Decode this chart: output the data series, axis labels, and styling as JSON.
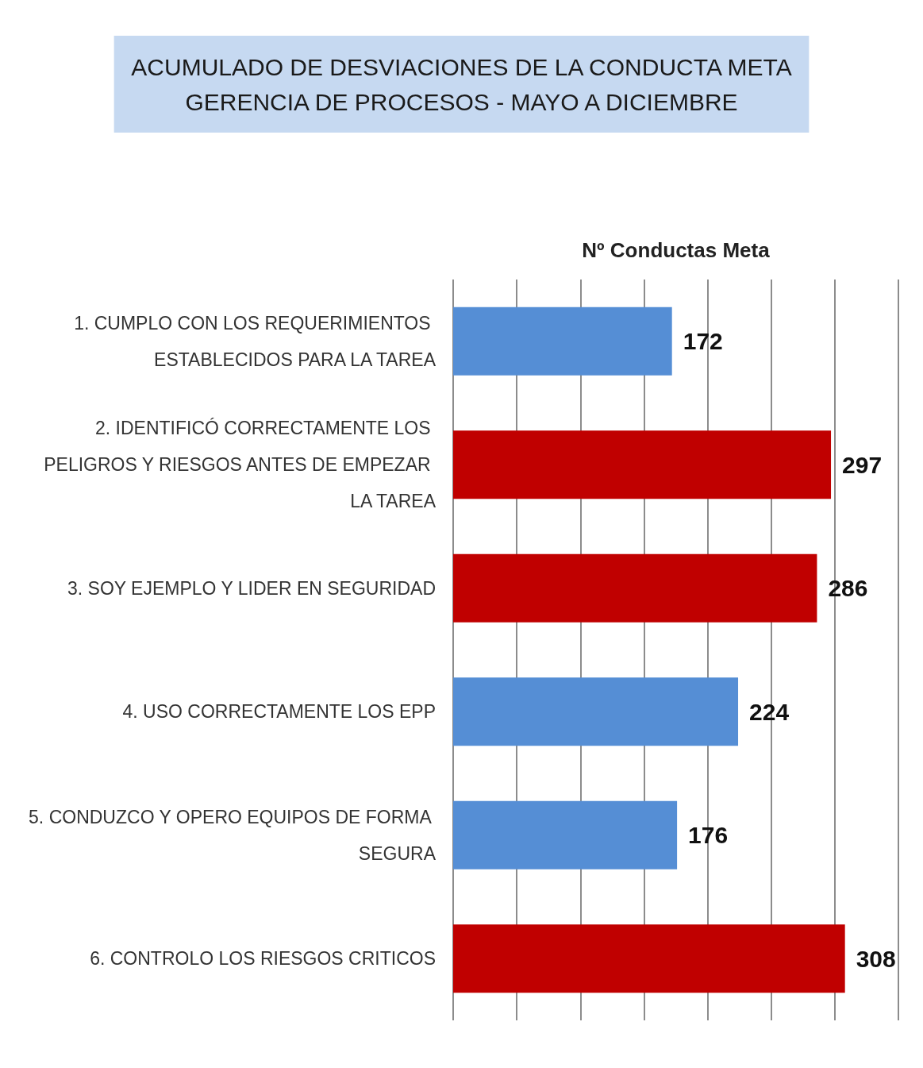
{
  "chart_data": {
    "type": "bar",
    "orientation": "horizontal",
    "title": "ACUMULADO DE DESVIACIONES DE LA CONDUCTA META",
    "subtitle": "GERENCIA DE PROCESOS - MAYO A DICIEMBRE",
    "xlabel": "Nº Conductas Meta",
    "categories": [
      "1. CUMPLO CON LOS REQUERIMIENTOS ESTABLECIDOS PARA LA TAREA",
      "2. IDENTIFICÓ CORRECTAMENTE LOS PELIGROS Y RIESGOS ANTES DE EMPEZAR LA TAREA",
      "3. SOY EJEMPLO Y LIDER EN SEGURIDAD",
      "4. USO CORRECTAMENTE LOS EPP",
      "5. CONDUZCO Y OPERO EQUIPOS DE FORMA SEGURA",
      "6. CONTROLO LOS RIESGOS CRITICOS"
    ],
    "values": [
      172,
      297,
      286,
      224,
      176,
      308
    ],
    "colors": [
      "#558ed5",
      "#c00000",
      "#c00000",
      "#558ed5",
      "#558ed5",
      "#c00000"
    ],
    "xlim": [
      0,
      350
    ],
    "xticks": [
      {
        "value": 0,
        "label": null
      },
      {
        "value": 50,
        "label": null
      },
      {
        "value": 100,
        "label": null
      },
      {
        "value": 150,
        "label": null
      },
      {
        "value": 200,
        "label": null
      },
      {
        "value": 250,
        "label": null
      },
      {
        "value": 300,
        "label": null
      },
      {
        "value": 350,
        "label": null
      }
    ],
    "grid": "x",
    "tick_labels": "y",
    "data_labels": true
  }
}
